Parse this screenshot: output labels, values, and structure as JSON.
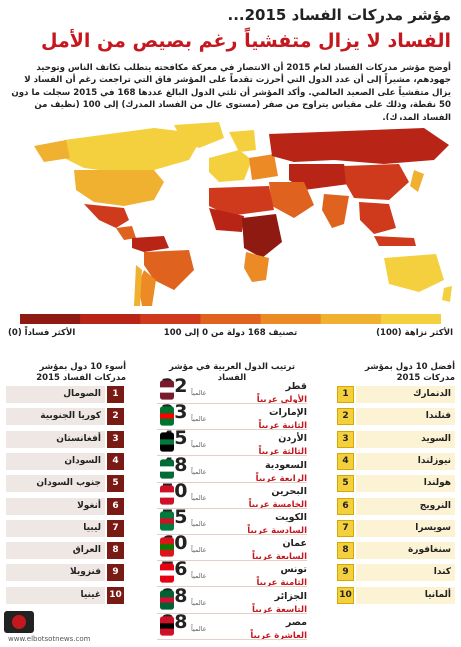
{
  "header": {
    "title": "مؤشر مدركات الفساد 2015...",
    "subtitle": "الفساد لا يزال متفشياً رغم بصيص من الأمل",
    "intro": "أوضح مؤشر مدركات الفساد لعام 2015 أن الانتصار في معركة مكافحته يتطلب تكاتف الناس وتوحيد جهودهم، مشيراً إلى أن عدد الدول التي أحرزت تقدماً على المؤشر فاق التي تراجعت رغم أن الفساد لا يزال متفشياً على الصعيد العالمي. وأكد المؤشر أن ثلثي الدول البالغ عددها 168 في 2015 سجلت ما دون 50 نقطة، وذلك على مقياس يتراوح من صفر (مستوى عال من الفساد المدرك) إلى 100 (نظيف من الفساد المدرك)."
  },
  "legend": {
    "high": "الأكثر نزاهة (100)",
    "mid": "تصنيف 168 دولة من 0 إلى 100",
    "low": "الأكثر فساداً (0)",
    "colors": [
      "#f4d03f",
      "#f0b030",
      "#ec8a25",
      "#e0621f",
      "#cf3a1c",
      "#b82416",
      "#8f1a12"
    ]
  },
  "columns": {
    "best_header": "أفضل 10 دول بمؤشر مدركات 2015",
    "arab_header": "ترتيب الدول العربية في مؤشر الفساد",
    "worst_header": "أسوء 10 دول بمؤشر مدركات الفساد 2015"
  },
  "world_label": "عالمياً",
  "chart_data": {
    "type": "table",
    "title": "مؤشر مدركات الفساد 2015",
    "best_10": [
      {
        "rank": "1",
        "country": "الدنمارك"
      },
      {
        "rank": "2",
        "country": "فنلندا"
      },
      {
        "rank": "3",
        "country": "السويد"
      },
      {
        "rank": "4",
        "country": "نيوزلندا"
      },
      {
        "rank": "5",
        "country": "هولندا"
      },
      {
        "rank": "6",
        "country": "النرويج"
      },
      {
        "rank": "7",
        "country": "سويسرا"
      },
      {
        "rank": "8",
        "country": "سنغافورة"
      },
      {
        "rank": "9",
        "country": "كندا"
      },
      {
        "rank": "10",
        "country": "ألمانيا"
      }
    ],
    "worst_10": [
      {
        "rank": "1",
        "country": "الصومال"
      },
      {
        "rank": "2",
        "country": "كوريا الجنوبية"
      },
      {
        "rank": "3",
        "country": "أفغانستان"
      },
      {
        "rank": "4",
        "country": "السودان"
      },
      {
        "rank": "5",
        "country": "جنوب السودان"
      },
      {
        "rank": "6",
        "country": "أنغولا"
      },
      {
        "rank": "7",
        "country": "ليبيا"
      },
      {
        "rank": "8",
        "country": "العراق"
      },
      {
        "rank": "9",
        "country": "فنزويلا"
      },
      {
        "rank": "10",
        "country": "غينيا"
      }
    ],
    "arab": [
      {
        "country": "قطر",
        "world_rank": 22,
        "arab_rank": "الأولى عربياً"
      },
      {
        "country": "الإمارات",
        "world_rank": 23,
        "arab_rank": "الثانية عربياً"
      },
      {
        "country": "الأردن",
        "world_rank": 45,
        "arab_rank": "الثالثة عربياً"
      },
      {
        "country": "السعودية",
        "world_rank": 48,
        "arab_rank": "الرابعة عربياً"
      },
      {
        "country": "البحرين",
        "world_rank": 50,
        "arab_rank": "الخامسة عربياً"
      },
      {
        "country": "الكويت",
        "world_rank": 55,
        "arab_rank": "السادسة عربياً"
      },
      {
        "country": "عمان",
        "world_rank": 60,
        "arab_rank": "السابعة عربياً"
      },
      {
        "country": "تونس",
        "world_rank": 76,
        "arab_rank": "الثامنة عربياً"
      },
      {
        "country": "الجزائر",
        "world_rank": 88,
        "arab_rank": "التاسعة عربياً"
      },
      {
        "country": "مصر",
        "world_rank": 88,
        "arab_rank": "العاشرة عربياً"
      }
    ]
  },
  "watermark": "www.elbotsotnews.com"
}
